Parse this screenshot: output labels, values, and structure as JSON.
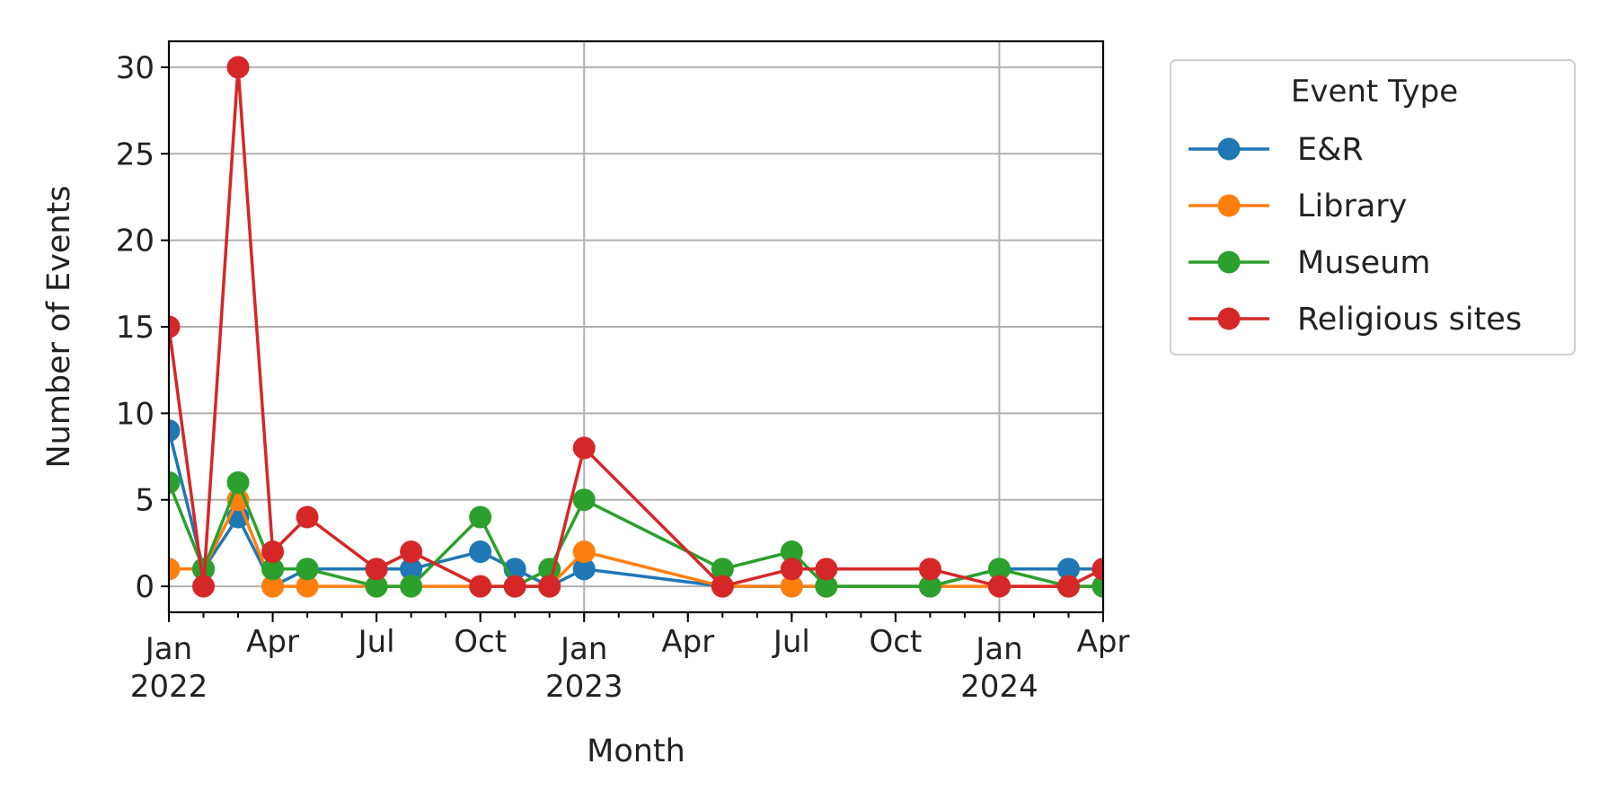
{
  "chart_data": {
    "type": "line",
    "xlabel": "Month",
    "ylabel": "Number of Events",
    "xlim": [
      "2022-01",
      "2024-04"
    ],
    "ylim": [
      -1.5,
      31.5
    ],
    "grid": true,
    "legend": {
      "title": "Event Type",
      "placement": "outside-right"
    },
    "x_ticks": [
      {
        "date": "2022-01",
        "line1": "Jan",
        "line2": "2022"
      },
      {
        "date": "2022-04",
        "line1": "Apr",
        "line2": ""
      },
      {
        "date": "2022-07",
        "line1": "Jul",
        "line2": ""
      },
      {
        "date": "2022-10",
        "line1": "Oct",
        "line2": ""
      },
      {
        "date": "2023-01",
        "line1": "Jan",
        "line2": "2023"
      },
      {
        "date": "2023-04",
        "line1": "Apr",
        "line2": ""
      },
      {
        "date": "2023-07",
        "line1": "Jul",
        "line2": ""
      },
      {
        "date": "2023-10",
        "line1": "Oct",
        "line2": ""
      },
      {
        "date": "2024-01",
        "line1": "Jan",
        "line2": "2024"
      },
      {
        "date": "2024-04",
        "line1": "Apr",
        "line2": ""
      }
    ],
    "y_ticks": [
      0,
      5,
      10,
      15,
      20,
      25,
      30
    ],
    "series": [
      {
        "name": "E&R",
        "color": "#1f77b4",
        "points": [
          {
            "x": "2022-01",
            "y": 9
          },
          {
            "x": "2022-02",
            "y": 1
          },
          {
            "x": "2022-03",
            "y": 4
          },
          {
            "x": "2022-04",
            "y": 0
          },
          {
            "x": "2022-05",
            "y": 1
          },
          {
            "x": "2022-07",
            "y": 1
          },
          {
            "x": "2022-08",
            "y": 1
          },
          {
            "x": "2022-10",
            "y": 2
          },
          {
            "x": "2022-11",
            "y": 1
          },
          {
            "x": "2022-12",
            "y": 0
          },
          {
            "x": "2023-01",
            "y": 1
          },
          {
            "x": "2023-05",
            "y": 0
          },
          {
            "x": "2023-07",
            "y": 0
          },
          {
            "x": "2023-08",
            "y": 0
          },
          {
            "x": "2023-11",
            "y": 0
          },
          {
            "x": "2024-01",
            "y": 1
          },
          {
            "x": "2024-03",
            "y": 1
          },
          {
            "x": "2024-04",
            "y": 1
          }
        ]
      },
      {
        "name": "Library",
        "color": "#ff7f0e",
        "points": [
          {
            "x": "2022-01",
            "y": 1
          },
          {
            "x": "2022-02",
            "y": 1
          },
          {
            "x": "2022-03",
            "y": 5
          },
          {
            "x": "2022-04",
            "y": 0
          },
          {
            "x": "2022-05",
            "y": 0
          },
          {
            "x": "2022-07",
            "y": 0
          },
          {
            "x": "2022-08",
            "y": 0
          },
          {
            "x": "2022-10",
            "y": 0
          },
          {
            "x": "2022-11",
            "y": 0
          },
          {
            "x": "2022-12",
            "y": 0
          },
          {
            "x": "2023-01",
            "y": 2
          },
          {
            "x": "2023-05",
            "y": 0
          },
          {
            "x": "2023-07",
            "y": 0
          },
          {
            "x": "2023-08",
            "y": 0
          },
          {
            "x": "2023-11",
            "y": 0
          },
          {
            "x": "2024-01",
            "y": 0
          },
          {
            "x": "2024-03",
            "y": 0
          },
          {
            "x": "2024-04",
            "y": 0
          }
        ]
      },
      {
        "name": "Museum",
        "color": "#2ca02c",
        "points": [
          {
            "x": "2022-01",
            "y": 6
          },
          {
            "x": "2022-02",
            "y": 1
          },
          {
            "x": "2022-03",
            "y": 6
          },
          {
            "x": "2022-04",
            "y": 1
          },
          {
            "x": "2022-05",
            "y": 1
          },
          {
            "x": "2022-07",
            "y": 0
          },
          {
            "x": "2022-08",
            "y": 0
          },
          {
            "x": "2022-10",
            "y": 4
          },
          {
            "x": "2022-11",
            "y": 0
          },
          {
            "x": "2022-12",
            "y": 1
          },
          {
            "x": "2023-01",
            "y": 5
          },
          {
            "x": "2023-05",
            "y": 1
          },
          {
            "x": "2023-07",
            "y": 2
          },
          {
            "x": "2023-08",
            "y": 0
          },
          {
            "x": "2023-11",
            "y": 0
          },
          {
            "x": "2024-01",
            "y": 1
          },
          {
            "x": "2024-03",
            "y": 0
          },
          {
            "x": "2024-04",
            "y": 0
          }
        ]
      },
      {
        "name": "Religious sites",
        "color": "#d62728",
        "points": [
          {
            "x": "2022-01",
            "y": 15
          },
          {
            "x": "2022-02",
            "y": 0
          },
          {
            "x": "2022-03",
            "y": 30
          },
          {
            "x": "2022-04",
            "y": 2
          },
          {
            "x": "2022-05",
            "y": 4
          },
          {
            "x": "2022-07",
            "y": 1
          },
          {
            "x": "2022-08",
            "y": 2
          },
          {
            "x": "2022-10",
            "y": 0
          },
          {
            "x": "2022-11",
            "y": 0
          },
          {
            "x": "2022-12",
            "y": 0
          },
          {
            "x": "2023-01",
            "y": 8
          },
          {
            "x": "2023-05",
            "y": 0
          },
          {
            "x": "2023-07",
            "y": 1
          },
          {
            "x": "2023-08",
            "y": 1
          },
          {
            "x": "2023-11",
            "y": 1
          },
          {
            "x": "2024-01",
            "y": 0
          },
          {
            "x": "2024-03",
            "y": 0
          },
          {
            "x": "2024-04",
            "y": 1
          }
        ]
      }
    ]
  }
}
